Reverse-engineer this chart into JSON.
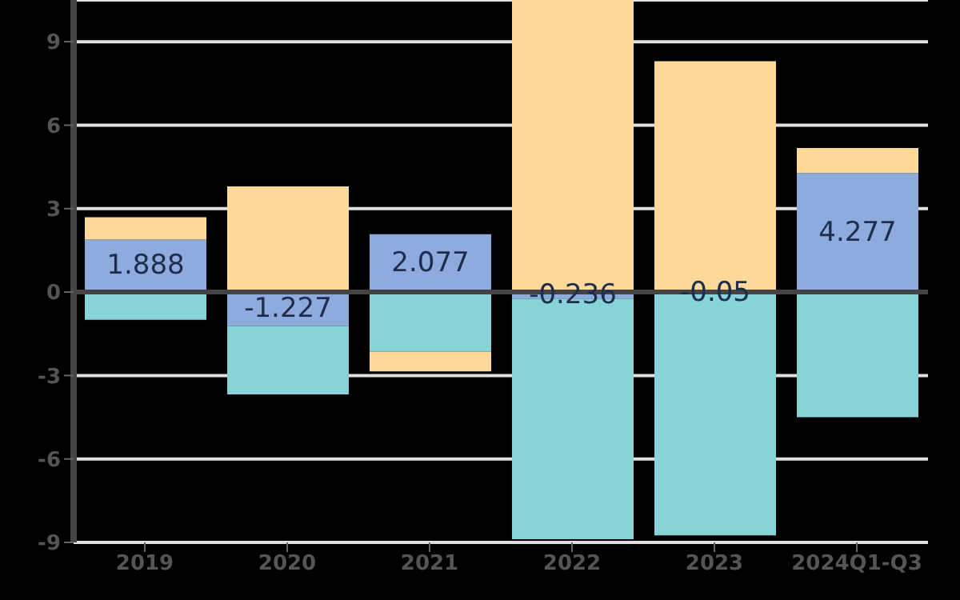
{
  "chart_data": {
    "type": "bar",
    "stacked": true,
    "categories": [
      "2019",
      "2020",
      "2021",
      "2022",
      "2023",
      "2024Q1-Q3"
    ],
    "series": [
      {
        "color": "#8faadc",
        "values": [
          1.888,
          -1.227,
          2.077,
          -0.236,
          -0.05,
          4.277
        ],
        "value_labels": [
          "1.888",
          "-1.227",
          "2.077",
          "-0.236",
          "-0.05",
          "4.277"
        ]
      },
      {
        "color": "#86d4d8",
        "values": [
          -1.0,
          -2.45,
          -2.15,
          -8.65,
          -8.7,
          -4.5
        ]
      },
      {
        "color": "#ffd999",
        "values": [
          0.8,
          3.8,
          -0.7,
          10.5,
          8.3,
          0.9
        ]
      }
    ],
    "ylim": [
      -9,
      10.5
    ],
    "yticks": [
      -9,
      -6,
      -3,
      0,
      3,
      6,
      9
    ],
    "grid": "y"
  }
}
